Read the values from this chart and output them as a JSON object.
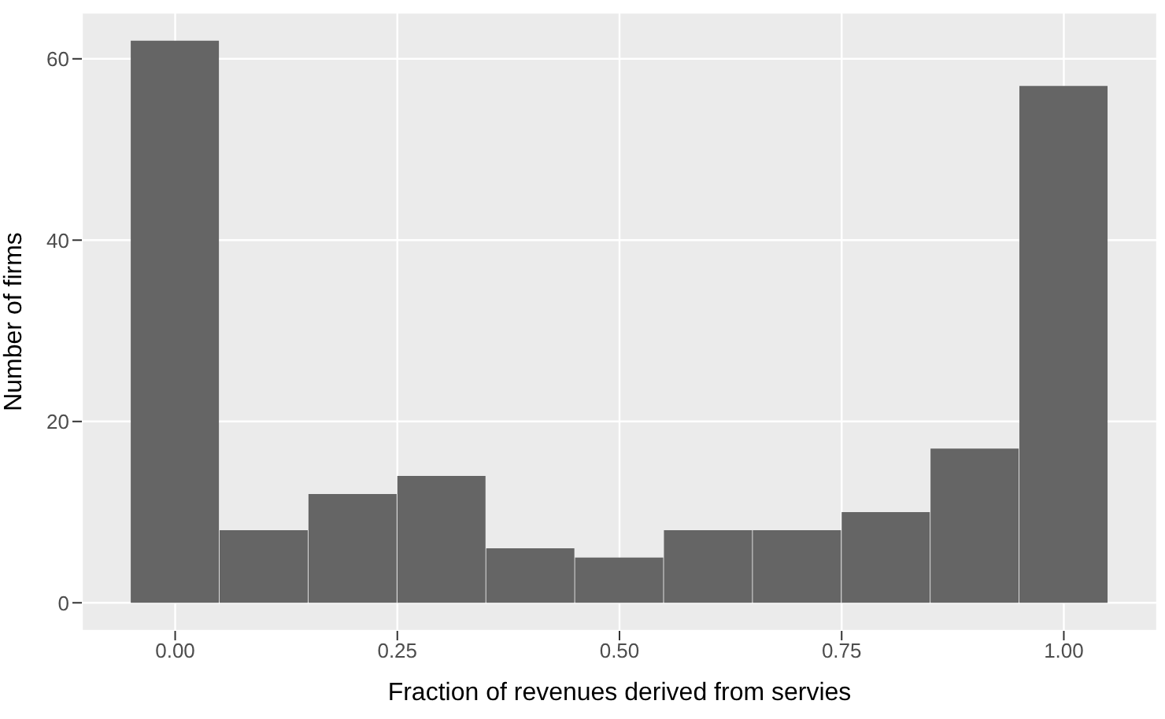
{
  "chart_data": {
    "type": "histogram",
    "xlabel": "Fraction of revenues derived from servies",
    "ylabel": "Number of firms",
    "bins": [
      -0.05,
      0.05,
      0.15,
      0.25,
      0.35,
      0.45,
      0.55,
      0.65,
      0.75,
      0.85,
      0.95,
      1.05
    ],
    "values": [
      62,
      8,
      12,
      14,
      6,
      5,
      8,
      8,
      10,
      17,
      57
    ],
    "color": "#656565",
    "xlim": [
      -0.105,
      1.105
    ],
    "xticks": [
      {
        "value": 0,
        "label": "0.00"
      },
      {
        "value": 0.25,
        "label": "0.25"
      },
      {
        "value": 0.5,
        "label": "0.50"
      },
      {
        "value": 0.75,
        "label": "0.75"
      },
      {
        "value": 1,
        "label": "1.00"
      }
    ],
    "ylim": [
      -3.1,
      65.1
    ],
    "yticks": [
      0,
      20,
      40,
      60
    ],
    "grid": true
  }
}
